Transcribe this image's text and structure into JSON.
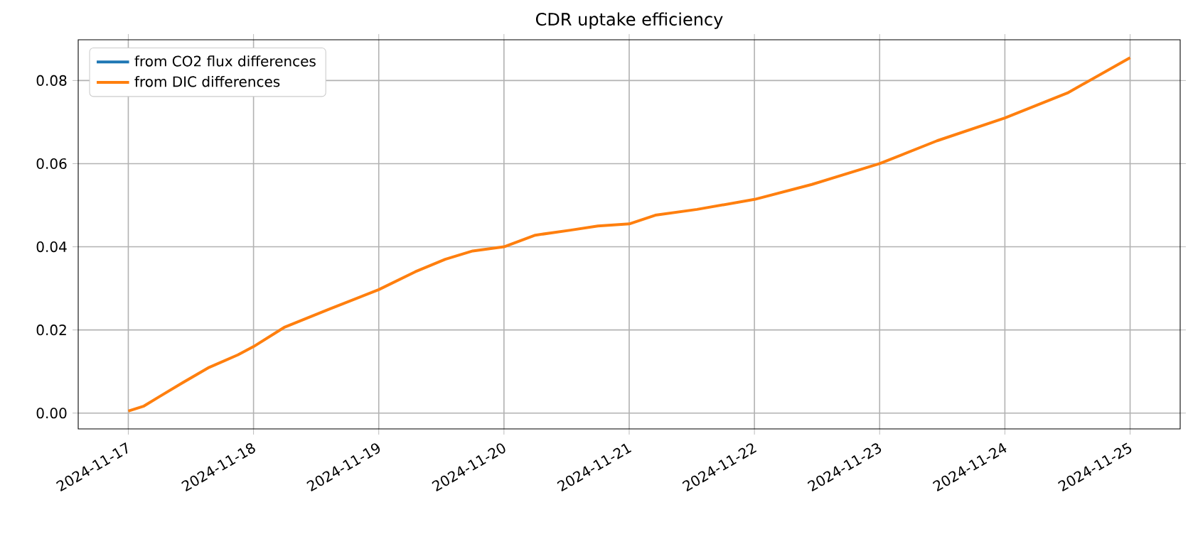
{
  "chart_data": {
    "type": "line",
    "title": "CDR uptake efficiency",
    "x": [
      "2024-11-17T00:00",
      "2024-11-17T03:00",
      "2024-11-17T06:00",
      "2024-11-17T10:00",
      "2024-11-17T15:30",
      "2024-11-17T21:00",
      "2024-11-18T00:00",
      "2024-11-18T06:00",
      "2024-11-18T14:30",
      "2024-11-19T00:00",
      "2024-11-19T07:00",
      "2024-11-19T12:45",
      "2024-11-19T18:00",
      "2024-11-20T00:00",
      "2024-11-20T06:00",
      "2024-11-20T12:45",
      "2024-11-20T18:00",
      "2024-11-21T00:00",
      "2024-11-21T05:00",
      "2024-11-21T13:00",
      "2024-11-22T00:00",
      "2024-11-22T11:00",
      "2024-11-23T00:00",
      "2024-11-23T11:00",
      "2024-11-24T00:00",
      "2024-11-24T12:00",
      "2024-11-25T00:00"
    ],
    "series": [
      {
        "name": "from CO2 flux differences",
        "color": "#1f77b4",
        "values": [
          null,
          null,
          null,
          null,
          null,
          null,
          null,
          null,
          null,
          null,
          null,
          null,
          null,
          null,
          null,
          null,
          null,
          null,
          null,
          null,
          null,
          null,
          null,
          null,
          null,
          null,
          null
        ]
      },
      {
        "name": "from DIC differences",
        "color": "#ff7f0e",
        "values": [
          0.0005,
          0.0017,
          0.004,
          0.007,
          0.011,
          0.014,
          0.016,
          0.0207,
          0.025,
          0.0297,
          0.034,
          0.037,
          0.039,
          0.04,
          0.0428,
          0.044,
          0.045,
          0.0455,
          0.0476,
          0.049,
          0.0514,
          0.055,
          0.06,
          0.0655,
          0.071,
          0.077,
          0.0855
        ]
      }
    ],
    "xlim": [
      "2024-11-16T14:24",
      "2024-11-25T09:36"
    ],
    "xticks": [
      "2024-11-17",
      "2024-11-18",
      "2024-11-19",
      "2024-11-20",
      "2024-11-21",
      "2024-11-22",
      "2024-11-23",
      "2024-11-24",
      "2024-11-25"
    ],
    "ylim": [
      -0.0038,
      0.0898
    ],
    "yticks": [
      {
        "value": 0,
        "label": "0.00"
      },
      {
        "value": 0.02,
        "label": "0.02"
      },
      {
        "value": 0.04,
        "label": "0.04"
      },
      {
        "value": 0.06,
        "label": "0.06"
      },
      {
        "value": 0.08,
        "label": "0.08"
      }
    ],
    "grid": true,
    "legend": "top left",
    "line_style": "solid",
    "marker": "none"
  }
}
